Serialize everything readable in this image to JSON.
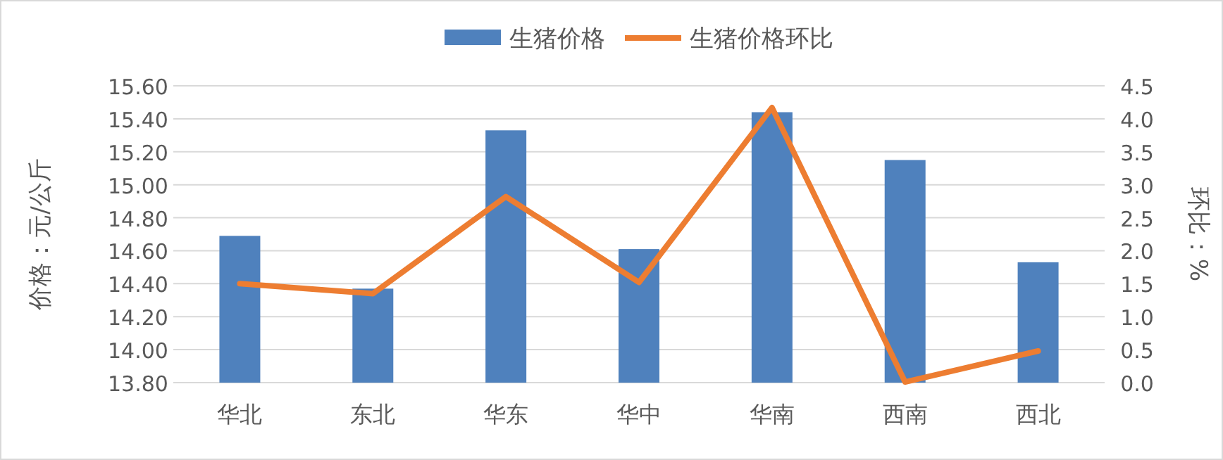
{
  "chart_data": {
    "type": "bar",
    "categories": [
      "华北",
      "东北",
      "华东",
      "华中",
      "华南",
      "西南",
      "西北"
    ],
    "series": [
      {
        "name": "生猪价格",
        "color": "#4f81bd",
        "values": [
          14.69,
          14.37,
          15.33,
          14.61,
          15.44,
          15.15,
          14.53
        ]
      },
      {
        "name": "生猪价格环比",
        "type": "line",
        "axis": "y2",
        "color": "#ed7d31",
        "values": [
          1.5,
          1.35,
          2.82,
          1.52,
          4.17,
          0.01,
          0.48
        ]
      }
    ],
    "ylabel": "价格：元/公斤",
    "y2label": "环比：%",
    "ylim": [
      13.8,
      15.6
    ],
    "yticks": [
      {
        "value": 13.8,
        "label": "13.80"
      },
      {
        "value": 14.0,
        "label": "14.00"
      },
      {
        "value": 14.2,
        "label": "14.20"
      },
      {
        "value": 14.4,
        "label": "14.40"
      },
      {
        "value": 14.6,
        "label": "14.60"
      },
      {
        "value": 14.8,
        "label": "14.80"
      },
      {
        "value": 15.0,
        "label": "15.00"
      },
      {
        "value": 15.2,
        "label": "15.20"
      },
      {
        "value": 15.4,
        "label": "15.40"
      },
      {
        "value": 15.6,
        "label": "15.60"
      }
    ],
    "y2lim": [
      0,
      4.5
    ],
    "y2ticks": [
      {
        "value": 0,
        "label": "0.0"
      },
      {
        "value": 0.5,
        "label": "0.5"
      },
      {
        "value": 1,
        "label": "1.0"
      },
      {
        "value": 1.5,
        "label": "1.5"
      },
      {
        "value": 2,
        "label": "2.0"
      },
      {
        "value": 2.5,
        "label": "2.5"
      },
      {
        "value": 3,
        "label": "3.0"
      },
      {
        "value": 3.5,
        "label": "3.5"
      },
      {
        "value": 4,
        "label": "4.0"
      },
      {
        "value": 4.5,
        "label": "4.5"
      }
    ],
    "grid": "y",
    "legend": "top"
  }
}
